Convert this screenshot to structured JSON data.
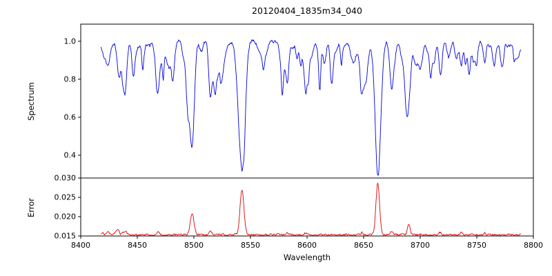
{
  "chart_data": {
    "type": "line",
    "title": "20120404_1835m34_040",
    "xlabel": "Wavelength",
    "xlim": [
      8400,
      8800
    ],
    "x_ticks": [
      8400,
      8450,
      8500,
      8550,
      8600,
      8650,
      8700,
      8750,
      8800
    ],
    "x_tick_labels": [
      "8400",
      "8450",
      "8500",
      "8550",
      "8600",
      "8650",
      "8700",
      "8750",
      "8800"
    ],
    "domain": [
      8418,
      8789
    ],
    "step": 0.5,
    "panels": [
      {
        "name": "spectrum",
        "ylabel": "Spectrum",
        "ylim": [
          0.28,
          1.09
        ],
        "ticks": [
          1.0,
          0.8,
          0.6,
          0.4
        ],
        "tick_labels": [
          "1.0",
          "0.8",
          "0.6",
          "0.4"
        ],
        "color": "#0000dd"
      },
      {
        "name": "error",
        "ylabel": "Error",
        "ylim": [
          0.015,
          0.03
        ],
        "ticks": [
          0.03,
          0.025,
          0.02,
          0.015
        ],
        "tick_labels": [
          "0.030",
          "0.025",
          "0.020",
          "0.015"
        ],
        "color": "#dd0000"
      }
    ],
    "continuum": 0.995,
    "continuum_wave_amp": 0.012,
    "continuum_wave_period": 61,
    "spectrum_clip": 1.04,
    "spectrum_lines": [
      {
        "c": 8424.0,
        "d": 0.1,
        "w": 1.2
      },
      {
        "c": 8433.5,
        "d": 0.16,
        "w": 1.3
      },
      {
        "c": 8439.0,
        "d": 0.26,
        "w": 1.6
      },
      {
        "c": 8446.5,
        "d": 0.12,
        "w": 1.2
      },
      {
        "c": 8468.5,
        "d": 0.16,
        "w": 1.5
      },
      {
        "c": 8498.5,
        "d": 0.52,
        "w": 2.0
      },
      {
        "c": 8514.5,
        "d": 0.2,
        "w": 1.4
      },
      {
        "c": 8518.5,
        "d": 0.14,
        "w": 1.2
      },
      {
        "c": 8542.5,
        "d": 0.68,
        "w": 2.6
      },
      {
        "c": 8582.5,
        "d": 0.12,
        "w": 1.3
      },
      {
        "c": 8598.5,
        "d": 0.14,
        "w": 1.3
      },
      {
        "c": 8611.0,
        "d": 0.12,
        "w": 1.3
      },
      {
        "c": 8621.5,
        "d": 0.12,
        "w": 1.2
      },
      {
        "c": 8648.5,
        "d": 0.12,
        "w": 1.4
      },
      {
        "c": 8662.5,
        "d": 0.65,
        "w": 2.4
      },
      {
        "c": 8674.5,
        "d": 0.16,
        "w": 1.3
      },
      {
        "c": 8688.5,
        "d": 0.3,
        "w": 1.8
      },
      {
        "c": 8712.0,
        "d": 0.1,
        "w": 1.2
      },
      {
        "c": 8717.5,
        "d": 0.12,
        "w": 1.2
      },
      {
        "c": 8736.0,
        "d": 0.1,
        "w": 1.2
      },
      {
        "c": 8747.0,
        "d": 0.1,
        "w": 1.1
      },
      {
        "c": 8757.0,
        "d": 0.1,
        "w": 1.1
      },
      {
        "c": 8772.0,
        "d": 0.1,
        "w": 1.1
      }
    ],
    "error_baseline": 0.0153,
    "error_clip": 0.0297,
    "error_peaks": [
      {
        "c": 8419.5,
        "a": 0.0008,
        "w": 1.0
      },
      {
        "c": 8424.0,
        "a": 0.0008,
        "w": 1.0
      },
      {
        "c": 8432.5,
        "a": 0.0012,
        "w": 1.5
      },
      {
        "c": 8439.0,
        "a": 0.001,
        "w": 1.5
      },
      {
        "c": 8468.5,
        "a": 0.0006,
        "w": 1.2
      },
      {
        "c": 8498.5,
        "a": 0.0055,
        "w": 1.6
      },
      {
        "c": 8514.5,
        "a": 0.0008,
        "w": 1.2
      },
      {
        "c": 8542.5,
        "a": 0.0118,
        "w": 1.7
      },
      {
        "c": 8583.0,
        "a": 0.0005,
        "w": 1.0
      },
      {
        "c": 8598.5,
        "a": 0.0006,
        "w": 1.0
      },
      {
        "c": 8648.5,
        "a": 0.0005,
        "w": 1.0
      },
      {
        "c": 8662.5,
        "a": 0.0135,
        "w": 1.6
      },
      {
        "c": 8674.5,
        "a": 0.0008,
        "w": 1.2
      },
      {
        "c": 8690.0,
        "a": 0.0028,
        "w": 1.2
      },
      {
        "c": 8717.5,
        "a": 0.0006,
        "w": 1.0
      },
      {
        "c": 8736.0,
        "a": 0.0005,
        "w": 1.0
      },
      {
        "c": 8757.0,
        "a": 0.0005,
        "w": 1.0
      }
    ],
    "noise": {
      "seed": 42,
      "weak_line_count": 150,
      "weak_depth_min": 0.01,
      "weak_depth_max": 0.11,
      "weak_width_min": 0.6,
      "weak_width_max": 1.9,
      "spectrum_jitter": 0.008,
      "error_jitter": 0.00025
    }
  }
}
